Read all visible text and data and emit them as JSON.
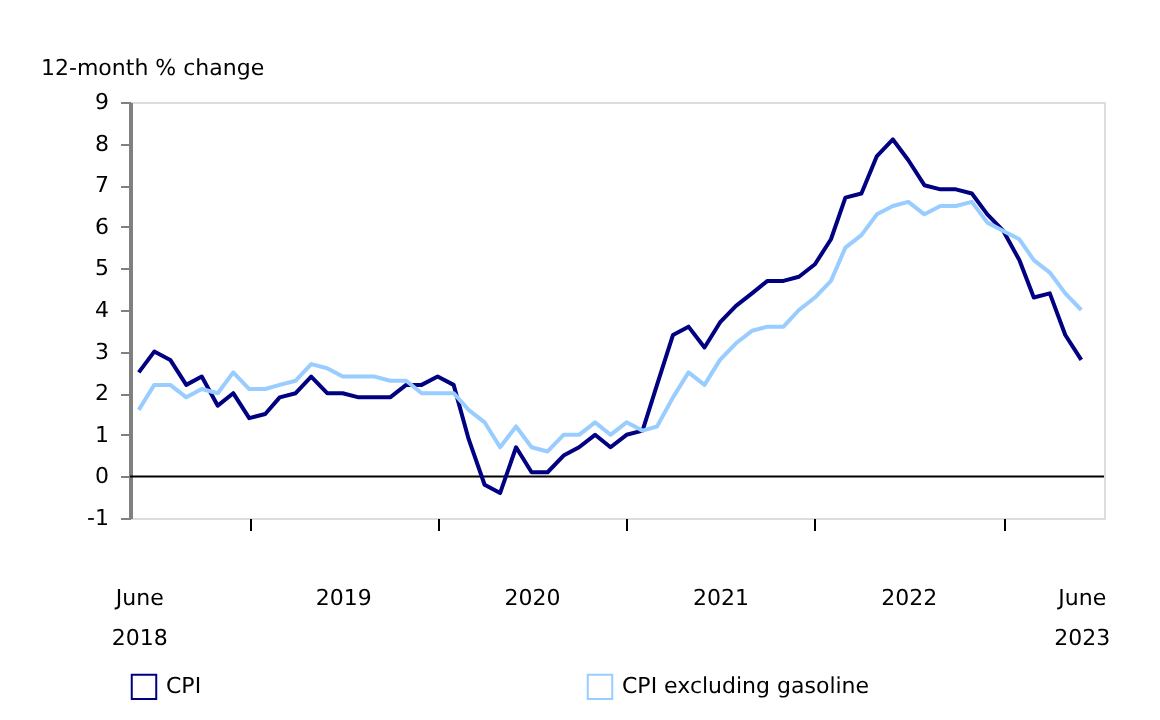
{
  "chart_data": {
    "type": "line",
    "ylabel": "12-month % change",
    "x": [
      "2018-06",
      "2018-07",
      "2018-08",
      "2018-09",
      "2018-10",
      "2018-11",
      "2018-12",
      "2019-01",
      "2019-02",
      "2019-03",
      "2019-04",
      "2019-05",
      "2019-06",
      "2019-07",
      "2019-08",
      "2019-09",
      "2019-10",
      "2019-11",
      "2019-12",
      "2020-01",
      "2020-02",
      "2020-03",
      "2020-04",
      "2020-05",
      "2020-06",
      "2020-07",
      "2020-08",
      "2020-09",
      "2020-10",
      "2020-11",
      "2020-12",
      "2021-01",
      "2021-02",
      "2021-03",
      "2021-04",
      "2021-05",
      "2021-06",
      "2021-07",
      "2021-08",
      "2021-09",
      "2021-10",
      "2021-11",
      "2021-12",
      "2022-01",
      "2022-02",
      "2022-03",
      "2022-04",
      "2022-05",
      "2022-06",
      "2022-07",
      "2022-08",
      "2022-09",
      "2022-10",
      "2022-11",
      "2022-12",
      "2023-01",
      "2023-02",
      "2023-03",
      "2023-04",
      "2023-05",
      "2023-06"
    ],
    "series": [
      {
        "name": "CPI",
        "color": "#000080",
        "values": [
          2.5,
          3.0,
          2.8,
          2.2,
          2.4,
          1.7,
          2.0,
          1.4,
          1.5,
          1.9,
          2.0,
          2.4,
          2.0,
          2.0,
          1.9,
          1.9,
          1.9,
          2.2,
          2.2,
          2.4,
          2.2,
          0.9,
          -0.2,
          -0.4,
          0.7,
          0.1,
          0.1,
          0.5,
          0.7,
          1.0,
          0.7,
          1.0,
          1.1,
          2.2,
          3.4,
          3.6,
          3.1,
          3.7,
          4.1,
          4.4,
          4.7,
          4.7,
          4.8,
          5.1,
          5.7,
          6.7,
          6.8,
          7.7,
          8.1,
          7.6,
          7.0,
          6.9,
          6.9,
          6.8,
          6.3,
          5.9,
          5.2,
          4.3,
          4.4,
          3.4,
          2.8
        ]
      },
      {
        "name": "CPI excluding gasoline",
        "color": "#99ccff",
        "values": [
          1.6,
          2.2,
          2.2,
          1.9,
          2.1,
          2.0,
          2.5,
          2.1,
          2.1,
          2.2,
          2.3,
          2.7,
          2.6,
          2.4,
          2.4,
          2.4,
          2.3,
          2.3,
          2.0,
          2.0,
          2.0,
          1.6,
          1.3,
          0.7,
          1.2,
          0.7,
          0.6,
          1.0,
          1.0,
          1.3,
          1.0,
          1.3,
          1.1,
          1.2,
          1.9,
          2.5,
          2.2,
          2.8,
          3.2,
          3.5,
          3.6,
          3.6,
          4.0,
          4.3,
          4.7,
          5.5,
          5.8,
          6.3,
          6.5,
          6.6,
          6.3,
          6.5,
          6.5,
          6.6,
          6.1,
          5.9,
          5.7,
          5.2,
          4.9,
          4.4,
          4.0
        ]
      }
    ],
    "xlim": [
      "2018-05-15",
      "2023-07-15"
    ],
    "xticks": [
      {
        "value": "2018-06",
        "label": "June 2018"
      },
      {
        "value": "2019-07",
        "label": "2019"
      },
      {
        "value": "2020-07",
        "label": "2020"
      },
      {
        "value": "2021-07",
        "label": "2021"
      },
      {
        "value": "2022-07",
        "label": "2022"
      },
      {
        "value": "2023-06",
        "label": "June 2023"
      },
      {
        "value": "2019-01",
        "label": null
      },
      {
        "value": "2020-01",
        "label": null
      },
      {
        "value": "2021-01",
        "label": null
      },
      {
        "value": "2022-01",
        "label": null
      },
      {
        "value": "2023-01",
        "label": null
      }
    ],
    "ylim": [
      -1,
      9
    ],
    "yticks": [
      -1,
      0,
      1,
      2,
      3,
      4,
      5,
      6,
      7,
      8,
      9
    ],
    "ref_lines": [
      {
        "axis": "y",
        "value": 0,
        "label": null
      }
    ],
    "grid": false,
    "legend": "bottom",
    "marker": "none",
    "line_style": "solid"
  }
}
